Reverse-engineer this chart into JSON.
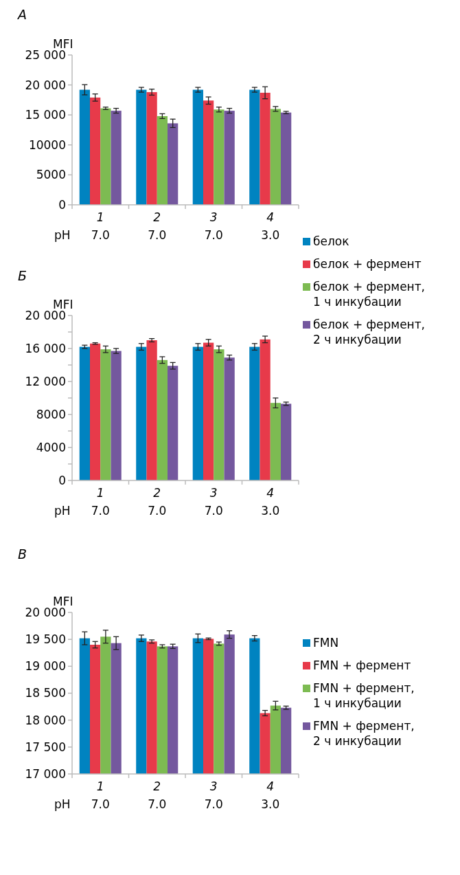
{
  "chart_data": [
    {
      "type": "bar",
      "title": "А",
      "ylabel": "MFI",
      "xlabel": "pH",
      "categories": [
        "1\n7.0",
        "2\n7.0",
        "3\n7.0",
        "4\n3.0"
      ],
      "ylim": [
        0,
        25000
      ],
      "yticks": [
        0,
        5000,
        10000,
        {
          "value": 15000,
          "label": "15 000"
        },
        {
          "value": 20000,
          "label": "20 000"
        },
        {
          "value": 25000,
          "label": "25 000"
        }
      ],
      "legend": false,
      "series": [
        {
          "color": "#0083c0",
          "values": [
            19200,
            19200,
            19200,
            19200
          ],
          "errors": [
            850,
            400,
            400,
            400
          ]
        },
        {
          "color": "#e73a4a",
          "values": [
            17900,
            18800,
            17400,
            18700
          ],
          "errors": [
            600,
            500,
            600,
            1000
          ]
        },
        {
          "color": "#7dbb52",
          "values": [
            16100,
            14800,
            15900,
            16000
          ],
          "errors": [
            200,
            400,
            400,
            400
          ]
        },
        {
          "color": "#74589e",
          "values": [
            15700,
            13600,
            15700,
            15400
          ],
          "errors": [
            400,
            700,
            400,
            200
          ]
        }
      ]
    },
    {
      "type": "bar",
      "title": "Б",
      "ylabel": "MFI",
      "xlabel": "pH",
      "categories": [
        "1\n7.0",
        "2\n7.0",
        "3\n7.0",
        "4\n3.0"
      ],
      "ylim": [
        0,
        20000
      ],
      "yticks": [
        0,
        {
          "value": 2000,
          "label": null
        },
        4000,
        {
          "value": 6000,
          "label": null
        },
        8000,
        {
          "value": 10000,
          "label": null
        },
        {
          "value": 12000,
          "label": "12 000"
        },
        {
          "value": 14000,
          "label": null
        },
        {
          "value": 16000,
          "label": "16 000"
        },
        {
          "value": 18000,
          "label": null
        },
        {
          "value": 20000,
          "label": "20 000"
        }
      ],
      "legend": "top right",
      "series": [
        {
          "name": "белок",
          "color": "#0083c0",
          "values": [
            16200,
            16200,
            16200,
            16200
          ],
          "errors": [
            200,
            400,
            400,
            400
          ]
        },
        {
          "name": "белок + фермент",
          "color": "#e73a4a",
          "values": [
            16600,
            17000,
            16700,
            17100
          ],
          "errors": [
            100,
            200,
            400,
            400
          ]
        },
        {
          "name": "белок + фермент, 1 ч инкубации",
          "color": "#7dbb52",
          "values": [
            15900,
            14600,
            15900,
            9400
          ],
          "errors": [
            400,
            400,
            400,
            600
          ]
        },
        {
          "name": "белок + фермент, 2 ч инкубации",
          "color": "#74589e",
          "values": [
            15700,
            13900,
            14900,
            9300
          ],
          "errors": [
            300,
            400,
            300,
            200
          ]
        }
      ]
    },
    {
      "type": "bar",
      "title": "В",
      "ylabel": "MFI",
      "xlabel": "pH",
      "categories": [
        "1\n7.0",
        "2\n7.0",
        "3\n7.0",
        "4\n3.0"
      ],
      "ylim": [
        17000,
        20000
      ],
      "yticks": [
        {
          "value": 17000,
          "label": "17 000"
        },
        {
          "value": 17500,
          "label": "17 500"
        },
        {
          "value": 18000,
          "label": "18 000"
        },
        {
          "value": 18500,
          "label": "18 500"
        },
        {
          "value": 19000,
          "label": "19 000"
        },
        {
          "value": 19500,
          "label": "19 500"
        },
        {
          "value": 20000,
          "label": "20 000"
        }
      ],
      "legend": "right",
      "series": [
        {
          "name": "FMN",
          "color": "#0083c0",
          "values": [
            19520,
            19520,
            19520,
            19520
          ],
          "errors": [
            120,
            60,
            80,
            50
          ]
        },
        {
          "name": "FMN + фермент",
          "color": "#e73a4a",
          "values": [
            19400,
            19460,
            19510,
            18130
          ],
          "errors": [
            60,
            30,
            15,
            50
          ]
        },
        {
          "name": "FMN + фермент, 1 ч инкубации",
          "color": "#7dbb52",
          "values": [
            19550,
            19370,
            19420,
            18270
          ],
          "errors": [
            120,
            30,
            30,
            80
          ]
        },
        {
          "name": "FMN + фермент, 2 ч инкубации",
          "color": "#74589e",
          "values": [
            19430,
            19370,
            19590,
            18230
          ],
          "errors": [
            120,
            40,
            70,
            30
          ]
        }
      ]
    }
  ]
}
